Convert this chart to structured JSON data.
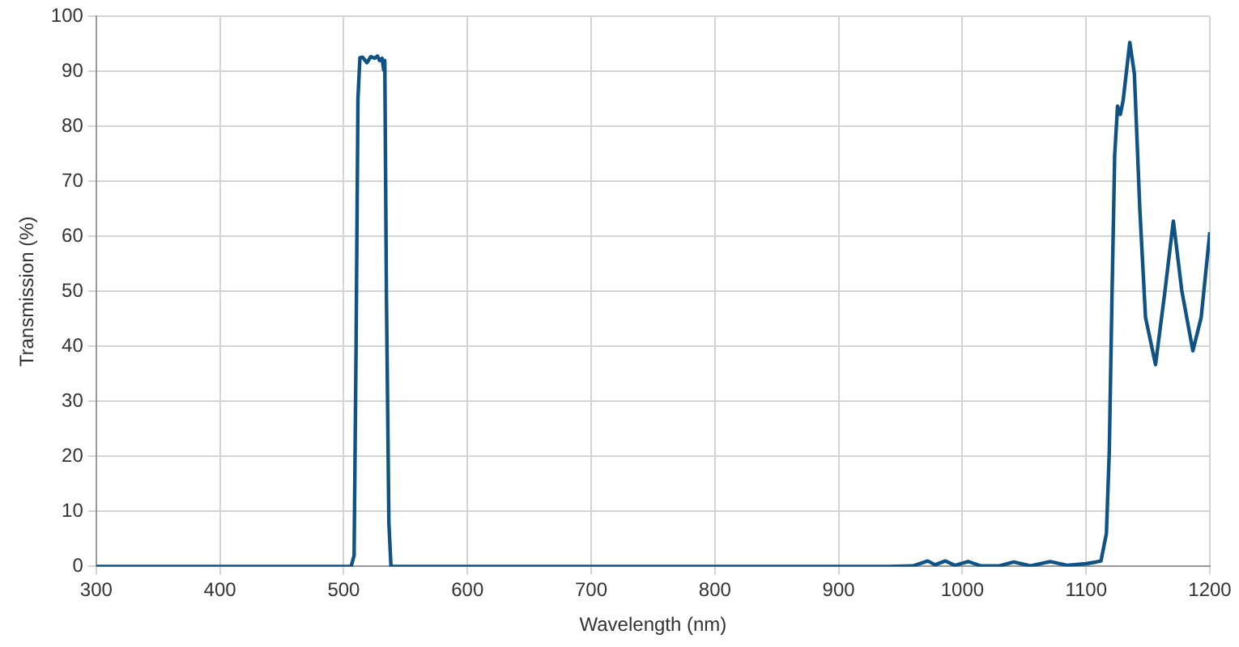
{
  "chart_data": {
    "type": "line",
    "xlabel": "Wavelength (nm)",
    "ylabel": "Transmission (%)",
    "xlim": [
      300,
      1200
    ],
    "xticks": [
      300,
      400,
      500,
      600,
      700,
      800,
      900,
      1000,
      1100,
      1200
    ],
    "ylim": [
      0,
      100
    ],
    "yticks": [
      0,
      10,
      20,
      30,
      40,
      50,
      60,
      70,
      80,
      90,
      100
    ],
    "grid": true,
    "legend": false,
    "marker": "none",
    "line_style": "solid",
    "series": [
      {
        "color": "#0f5286",
        "x": [
          300,
          500,
          506,
          508.4,
          510,
          511.5,
          513.1,
          515.2,
          518.8,
          521.9,
          525,
          527.3,
          529,
          531,
          532.3,
          533.2,
          534.5,
          536.5,
          538.2,
          545,
          940,
          960,
          972,
          978,
          986,
          994,
          1004.6,
          1015,
          1030,
          1041.5,
          1055,
          1071,
          1085,
          1100,
          1108,
          1112,
          1116.4,
          1118.7,
          1121,
          1123.1,
          1125.4,
          1127.7,
          1129.9,
          1135.3,
          1139,
          1143.4,
          1148,
          1156.1,
          1163.8,
          1170.5,
          1177.3,
          1186.3,
          1193,
          1200
        ],
        "values": [
          0,
          0,
          0,
          2,
          40,
          85,
          92.5,
          92.6,
          91.6,
          92.7,
          92.4,
          92.8,
          92,
          92.4,
          90.3,
          92,
          50,
          8,
          0,
          0,
          0,
          0.1,
          1,
          0.3,
          1,
          0.2,
          0.9,
          0.1,
          0.1,
          0.8,
          0.1,
          0.9,
          0.2,
          0.5,
          0.8,
          1,
          6,
          20.7,
          50.2,
          74.8,
          83.7,
          82.2,
          84.7,
          95.3,
          89.6,
          65,
          45.3,
          36.7,
          50.2,
          62.8,
          50.2,
          39.2,
          45.3,
          60.8
        ]
      }
    ]
  }
}
